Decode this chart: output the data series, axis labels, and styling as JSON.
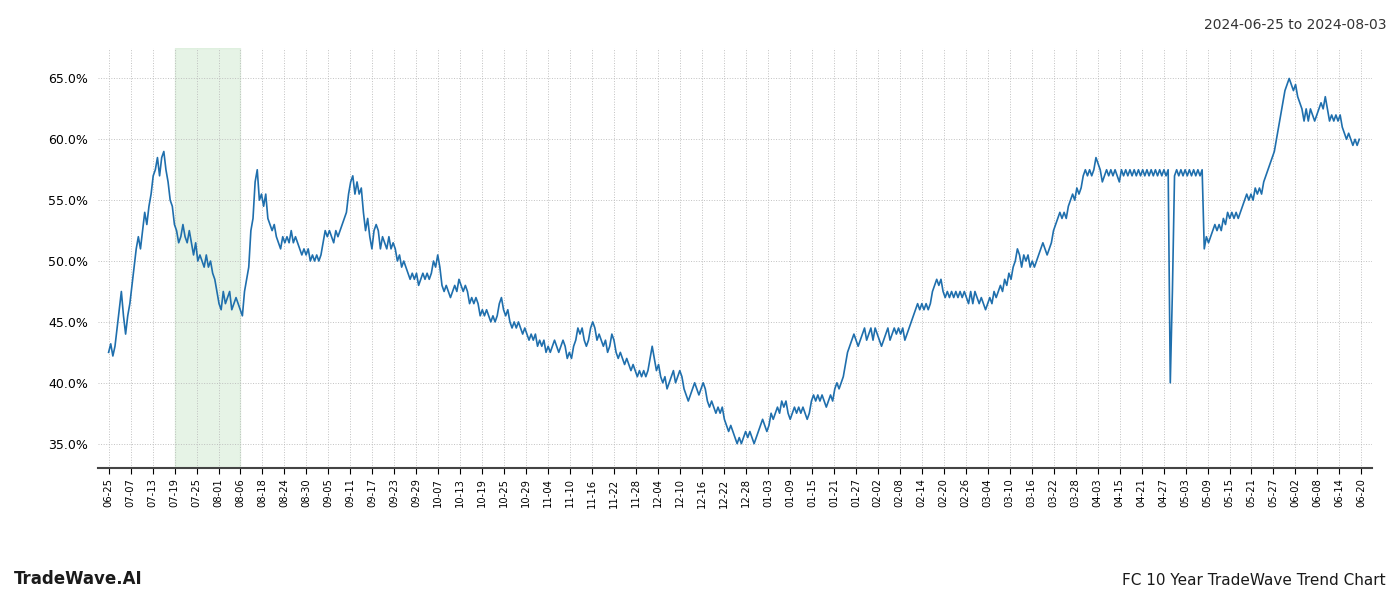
{
  "title_top_right": "2024-06-25 to 2024-08-03",
  "title_bottom_right": "FC 10 Year TradeWave Trend Chart",
  "title_bottom_left": "TradeWave.AI",
  "line_color": "#1f6fad",
  "line_width": 1.2,
  "highlight_color": "#c8e6c9",
  "highlight_alpha": 0.45,
  "ylim": [
    33.0,
    67.5
  ],
  "yticks": [
    35.0,
    40.0,
    45.0,
    50.0,
    55.0,
    60.0,
    65.0
  ],
  "background_color": "#ffffff",
  "grid_color": "#bbbbbb",
  "x_labels": [
    "06-25",
    "07-07",
    "07-13",
    "07-19",
    "07-25",
    "08-01",
    "08-06",
    "08-18",
    "08-24",
    "08-30",
    "09-05",
    "09-11",
    "09-17",
    "09-23",
    "09-29",
    "10-07",
    "10-13",
    "10-19",
    "10-25",
    "10-29",
    "11-04",
    "11-10",
    "11-16",
    "11-22",
    "11-28",
    "12-04",
    "12-10",
    "12-16",
    "12-22",
    "12-28",
    "01-03",
    "01-09",
    "01-15",
    "01-21",
    "01-27",
    "02-02",
    "02-08",
    "02-14",
    "02-20",
    "02-26",
    "03-04",
    "03-10",
    "03-16",
    "03-22",
    "03-28",
    "04-03",
    "04-15",
    "04-21",
    "04-27",
    "05-03",
    "05-09",
    "05-15",
    "05-21",
    "05-27",
    "06-02",
    "06-08",
    "06-14",
    "06-20"
  ],
  "values": [
    42.5,
    43.2,
    42.2,
    43.0,
    44.5,
    46.0,
    47.5,
    45.5,
    44.0,
    45.5,
    46.5,
    48.0,
    49.5,
    51.0,
    52.0,
    51.0,
    52.5,
    54.0,
    53.0,
    54.5,
    55.5,
    57.0,
    57.5,
    58.5,
    57.0,
    58.5,
    59.0,
    57.5,
    56.5,
    55.0,
    54.5,
    53.0,
    52.5,
    51.5,
    52.0,
    53.0,
    52.0,
    51.5,
    52.5,
    51.5,
    50.5,
    51.5,
    50.0,
    50.5,
    50.0,
    49.5,
    50.5,
    49.5,
    50.0,
    49.0,
    48.5,
    47.5,
    46.5,
    46.0,
    47.5,
    46.5,
    47.0,
    47.5,
    46.0,
    46.5,
    47.0,
    46.5,
    46.0,
    45.5,
    47.5,
    48.5,
    49.5,
    52.5,
    53.5,
    56.5,
    57.5,
    55.0,
    55.5,
    54.5,
    55.5,
    53.5,
    53.0,
    52.5,
    53.0,
    52.0,
    51.5,
    51.0,
    52.0,
    51.5,
    52.0,
    51.5,
    52.5,
    51.5,
    52.0,
    51.5,
    51.0,
    50.5,
    51.0,
    50.5,
    51.0,
    50.0,
    50.5,
    50.0,
    50.5,
    50.0,
    50.5,
    51.5,
    52.5,
    52.0,
    52.5,
    52.0,
    51.5,
    52.5,
    52.0,
    52.5,
    53.0,
    53.5,
    54.0,
    55.5,
    56.5,
    57.0,
    55.5,
    56.5,
    55.5,
    56.0,
    54.0,
    52.5,
    53.5,
    52.0,
    51.0,
    52.5,
    53.0,
    52.5,
    51.0,
    52.0,
    51.5,
    51.0,
    52.0,
    51.0,
    51.5,
    51.0,
    50.0,
    50.5,
    49.5,
    50.0,
    49.5,
    49.0,
    48.5,
    49.0,
    48.5,
    49.0,
    48.0,
    48.5,
    49.0,
    48.5,
    49.0,
    48.5,
    49.0,
    50.0,
    49.5,
    50.5,
    49.5,
    48.0,
    47.5,
    48.0,
    47.5,
    47.0,
    47.5,
    48.0,
    47.5,
    48.5,
    48.0,
    47.5,
    48.0,
    47.5,
    46.5,
    47.0,
    46.5,
    47.0,
    46.5,
    45.5,
    46.0,
    45.5,
    46.0,
    45.5,
    45.0,
    45.5,
    45.0,
    45.5,
    46.5,
    47.0,
    46.0,
    45.5,
    46.0,
    45.0,
    44.5,
    45.0,
    44.5,
    45.0,
    44.5,
    44.0,
    44.5,
    44.0,
    43.5,
    44.0,
    43.5,
    44.0,
    43.0,
    43.5,
    43.0,
    43.5,
    42.5,
    43.0,
    42.5,
    43.0,
    43.5,
    43.0,
    42.5,
    43.0,
    43.5,
    43.0,
    42.0,
    42.5,
    42.0,
    43.0,
    43.5,
    44.5,
    44.0,
    44.5,
    43.5,
    43.0,
    43.5,
    44.5,
    45.0,
    44.5,
    43.5,
    44.0,
    43.5,
    43.0,
    43.5,
    42.5,
    43.0,
    44.0,
    43.5,
    42.5,
    42.0,
    42.5,
    42.0,
    41.5,
    42.0,
    41.5,
    41.0,
    41.5,
    41.0,
    40.5,
    41.0,
    40.5,
    41.0,
    40.5,
    41.0,
    42.0,
    43.0,
    42.0,
    41.0,
    41.5,
    40.5,
    40.0,
    40.5,
    39.5,
    40.0,
    40.5,
    41.0,
    40.0,
    40.5,
    41.0,
    40.5,
    39.5,
    39.0,
    38.5,
    39.0,
    39.5,
    40.0,
    39.5,
    39.0,
    39.5,
    40.0,
    39.5,
    38.5,
    38.0,
    38.5,
    38.0,
    37.5,
    38.0,
    37.5,
    38.0,
    37.0,
    36.5,
    36.0,
    36.5,
    36.0,
    35.5,
    35.0,
    35.5,
    35.0,
    35.5,
    36.0,
    35.5,
    36.0,
    35.5,
    35.0,
    35.5,
    36.0,
    36.5,
    37.0,
    36.5,
    36.0,
    36.5,
    37.5,
    37.0,
    37.5,
    38.0,
    37.5,
    38.5,
    38.0,
    38.5,
    37.5,
    37.0,
    37.5,
    38.0,
    37.5,
    38.0,
    37.5,
    38.0,
    37.5,
    37.0,
    37.5,
    38.5,
    39.0,
    38.5,
    39.0,
    38.5,
    39.0,
    38.5,
    38.0,
    38.5,
    39.0,
    38.5,
    39.5,
    40.0,
    39.5,
    40.0,
    40.5,
    41.5,
    42.5,
    43.0,
    43.5,
    44.0,
    43.5,
    43.0,
    43.5,
    44.0,
    44.5,
    43.5,
    44.0,
    44.5,
    43.5,
    44.5,
    44.0,
    43.5,
    43.0,
    43.5,
    44.0,
    44.5,
    43.5,
    44.0,
    44.5,
    44.0,
    44.5,
    44.0,
    44.5,
    43.5,
    44.0,
    44.5,
    45.0,
    45.5,
    46.0,
    46.5,
    46.0,
    46.5,
    46.0,
    46.5,
    46.0,
    46.5,
    47.5,
    48.0,
    48.5,
    48.0,
    48.5,
    47.5,
    47.0,
    47.5,
    47.0,
    47.5,
    47.0,
    47.5,
    47.0,
    47.5,
    47.0,
    47.5,
    47.0,
    46.5,
    47.5,
    46.5,
    47.5,
    47.0,
    46.5,
    47.0,
    46.5,
    46.0,
    46.5,
    47.0,
    46.5,
    47.5,
    47.0,
    47.5,
    48.0,
    47.5,
    48.5,
    48.0,
    49.0,
    48.5,
    49.5,
    50.0,
    51.0,
    50.5,
    49.5,
    50.5,
    50.0,
    50.5,
    49.5,
    50.0,
    49.5,
    50.0,
    50.5,
    51.0,
    51.5,
    51.0,
    50.5,
    51.0,
    51.5,
    52.5,
    53.0,
    53.5,
    54.0,
    53.5,
    54.0,
    53.5,
    54.5,
    55.0,
    55.5,
    55.0,
    56.0,
    55.5,
    56.0,
    57.0,
    57.5,
    57.0,
    57.5,
    57.0,
    57.5,
    58.5,
    58.0,
    57.5,
    56.5,
    57.0,
    57.5,
    57.0,
    57.5,
    57.0,
    57.5,
    57.0,
    56.5,
    57.5,
    57.0,
    57.5,
    57.0,
    57.5,
    57.0,
    57.5,
    57.0,
    57.5,
    57.0,
    57.5,
    57.0,
    57.5,
    57.0,
    57.5,
    57.0,
    57.5,
    57.0,
    57.5,
    57.0,
    57.5,
    57.0,
    57.5,
    40.0,
    47.5,
    57.0,
    57.5,
    57.0,
    57.5,
    57.0,
    57.5,
    57.0,
    57.5,
    57.0,
    57.5,
    57.0,
    57.5,
    57.0,
    57.5,
    51.0,
    52.0,
    51.5,
    52.0,
    52.5,
    53.0,
    52.5,
    53.0,
    52.5,
    53.5,
    53.0,
    54.0,
    53.5,
    54.0,
    53.5,
    54.0,
    53.5,
    54.0,
    54.5,
    55.0,
    55.5,
    55.0,
    55.5,
    55.0,
    56.0,
    55.5,
    56.0,
    55.5,
    56.5,
    57.0,
    57.5,
    58.0,
    58.5,
    59.0,
    60.0,
    61.0,
    62.0,
    63.0,
    64.0,
    64.5,
    65.0,
    64.5,
    64.0,
    64.5,
    63.5,
    63.0,
    62.5,
    61.5,
    62.5,
    61.5,
    62.5,
    62.0,
    61.5,
    62.0,
    62.5,
    63.0,
    62.5,
    63.5,
    62.5,
    61.5,
    62.0,
    61.5,
    62.0,
    61.5,
    62.0,
    61.0,
    60.5,
    60.0,
    60.5,
    60.0,
    59.5,
    60.0,
    59.5,
    60.0
  ]
}
